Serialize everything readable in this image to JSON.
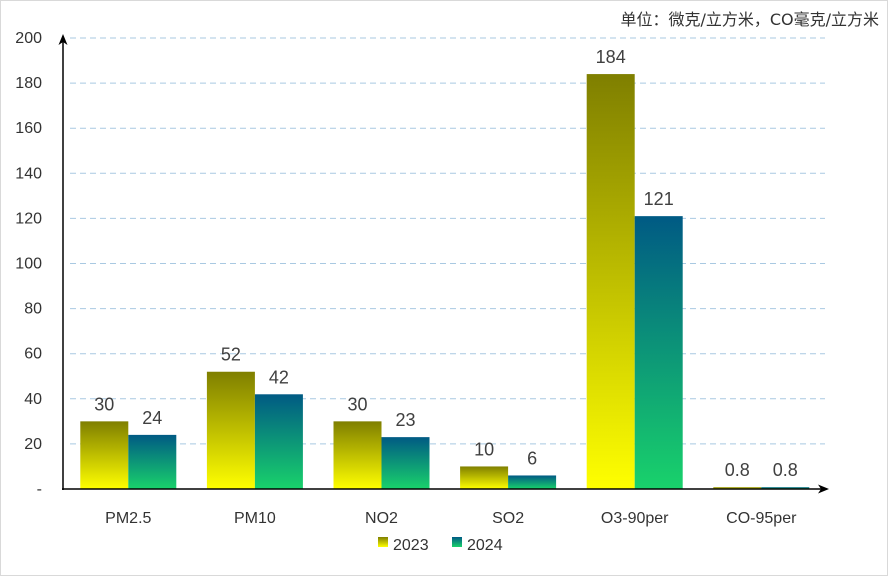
{
  "chart_data": {
    "type": "bar",
    "unit_note": "单位：微克/立方米，CO毫克/立方米",
    "categories": [
      "PM2.5",
      "PM10",
      "NO2",
      "SO2",
      "O3-90per",
      "CO-95per"
    ],
    "series": [
      {
        "name": "2023",
        "values": [
          30,
          52,
          30,
          10,
          184,
          0.8
        ],
        "color_top": "#7f7f00",
        "color_bottom": "#ffff00"
      },
      {
        "name": "2024",
        "values": [
          24,
          42,
          23,
          6,
          121,
          0.8
        ],
        "color_top": "#005a84",
        "color_bottom": "#19d26b"
      }
    ],
    "ylim": [
      0,
      200
    ],
    "yticks": [
      0,
      20,
      40,
      60,
      80,
      100,
      120,
      140,
      160,
      180,
      200
    ],
    "ytick_labels": [
      "-",
      "20",
      "40",
      "60",
      "80",
      "100",
      "120",
      "140",
      "160",
      "180",
      "200"
    ],
    "grid": true,
    "legend_position": "bottom"
  }
}
